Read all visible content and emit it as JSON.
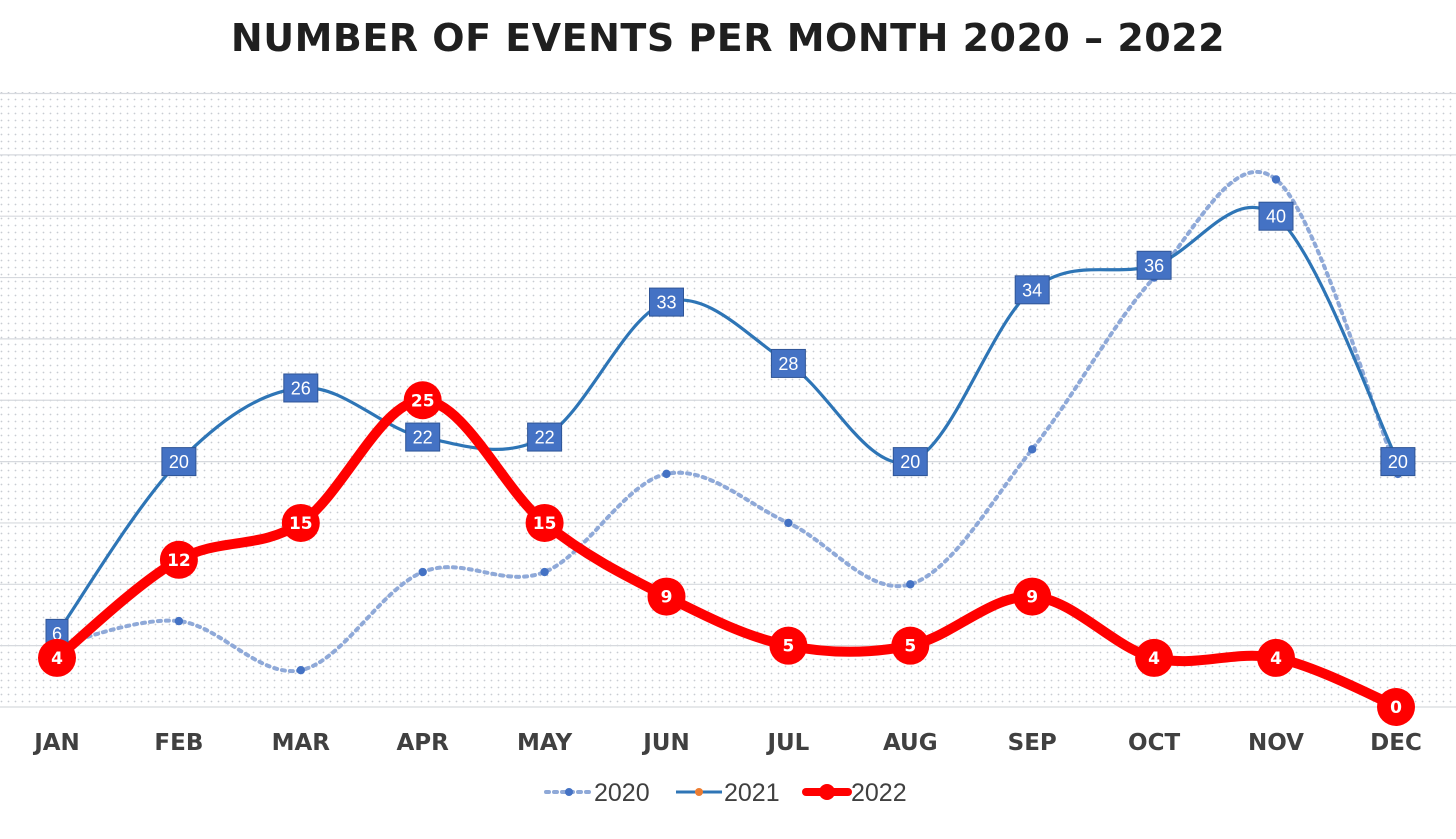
{
  "chart_data": {
    "type": "line",
    "title": "NUMBER OF EVENTS PER MONTH 2020 – 2022",
    "categories": [
      "JAN",
      "FEB",
      "MAR",
      "APR",
      "MAY",
      "JUN",
      "JUL",
      "AUG",
      "SEP",
      "OCT",
      "NOV",
      "DEC"
    ],
    "ylim": [
      0,
      45
    ],
    "grid": true,
    "legend_position": "bottom",
    "series": [
      {
        "name": "2020",
        "values": [
          5,
          7,
          3,
          11,
          11,
          19,
          15,
          10,
          21,
          35,
          43,
          19
        ],
        "color": "#4472c4",
        "style": "dotted",
        "data_labels": false
      },
      {
        "name": "2021",
        "values": [
          6,
          20,
          26,
          22,
          22,
          33,
          28,
          20,
          34,
          36,
          40,
          20
        ],
        "color": "#2e75b6",
        "style": "solid",
        "data_labels": true
      },
      {
        "name": "2022",
        "values": [
          4,
          12,
          15,
          25,
          15,
          9,
          5,
          5,
          9,
          4,
          4,
          0
        ],
        "color": "#ff0000",
        "style": "thick",
        "data_labels": true
      }
    ]
  }
}
